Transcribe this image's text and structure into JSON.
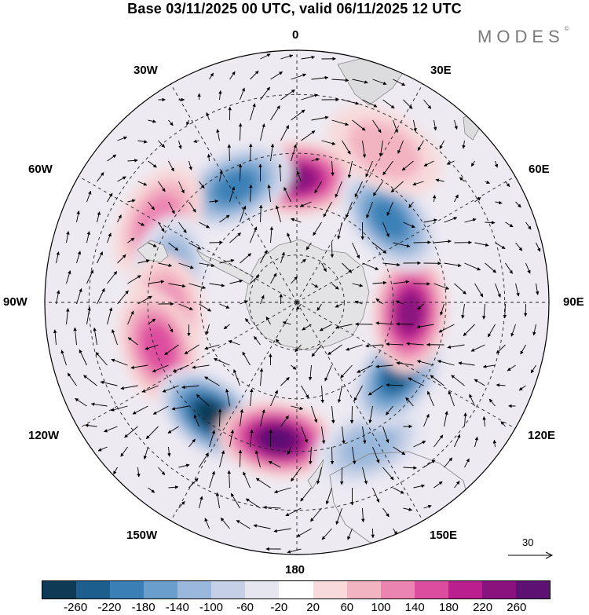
{
  "title": "Base 03/11/2025 00 UTC, valid 06/11/2025 12 UTC",
  "logo": "MODES",
  "logo_mark": "©",
  "longitude_labels": {
    "lon_0": "0",
    "lon_30e": "30E",
    "lon_60e": "60E",
    "lon_90e": "90E",
    "lon_120e": "120E",
    "lon_150e": "150E",
    "lon_180": "180",
    "lon_150w": "150W",
    "lon_120w": "120W",
    "lon_90w": "90W",
    "lon_60w": "60W",
    "lon_30w": "30W"
  },
  "reference_vector": {
    "label": "30"
  },
  "colorbar": {
    "colors": [
      "#0f3a55",
      "#1c5e8e",
      "#3a80b6",
      "#6b9fcb",
      "#9ab8db",
      "#c5cfe6",
      "#e6e6f1",
      "#ffffff",
      "#f8dada",
      "#f3b4c2",
      "#ec84b2",
      "#dd4d9f",
      "#b91f8f",
      "#8a127f",
      "#5c1173"
    ],
    "ticks": [
      "-260",
      "-220",
      "-180",
      "-140",
      "-100",
      "-60",
      "-20",
      "20",
      "60",
      "100",
      "140",
      "180",
      "220",
      "260"
    ]
  },
  "chart_data": {
    "type": "heatmap",
    "projection": "south-polar-stereographic",
    "field": "anomaly (shaded) with wind vectors",
    "contour_levels": [
      -260,
      -220,
      -180,
      -140,
      -100,
      -60,
      -20,
      20,
      60,
      100,
      140,
      180,
      220,
      260
    ],
    "anomaly_centers": [
      {
        "lon": 0,
        "lat": -52,
        "value": 220
      },
      {
        "lon": -28,
        "lat": -50,
        "value": -180
      },
      {
        "lon": -60,
        "lat": -42,
        "value": 100
      },
      {
        "lon": -78,
        "lat": -50,
        "value": -140
      },
      {
        "lon": -95,
        "lat": -50,
        "value": 100
      },
      {
        "lon": -108,
        "lat": -46,
        "value": 140
      },
      {
        "lon": -143,
        "lat": -47,
        "value": -260
      },
      {
        "lon": -172,
        "lat": -48,
        "value": 260
      },
      {
        "lon": 153,
        "lat": -42,
        "value": -100
      },
      {
        "lon": 125,
        "lat": -52,
        "value": -220
      },
      {
        "lon": 95,
        "lat": -55,
        "value": 220
      },
      {
        "lon": 48,
        "lat": -52,
        "value": -180
      },
      {
        "lon": 30,
        "lat": -38,
        "value": 60
      }
    ]
  }
}
